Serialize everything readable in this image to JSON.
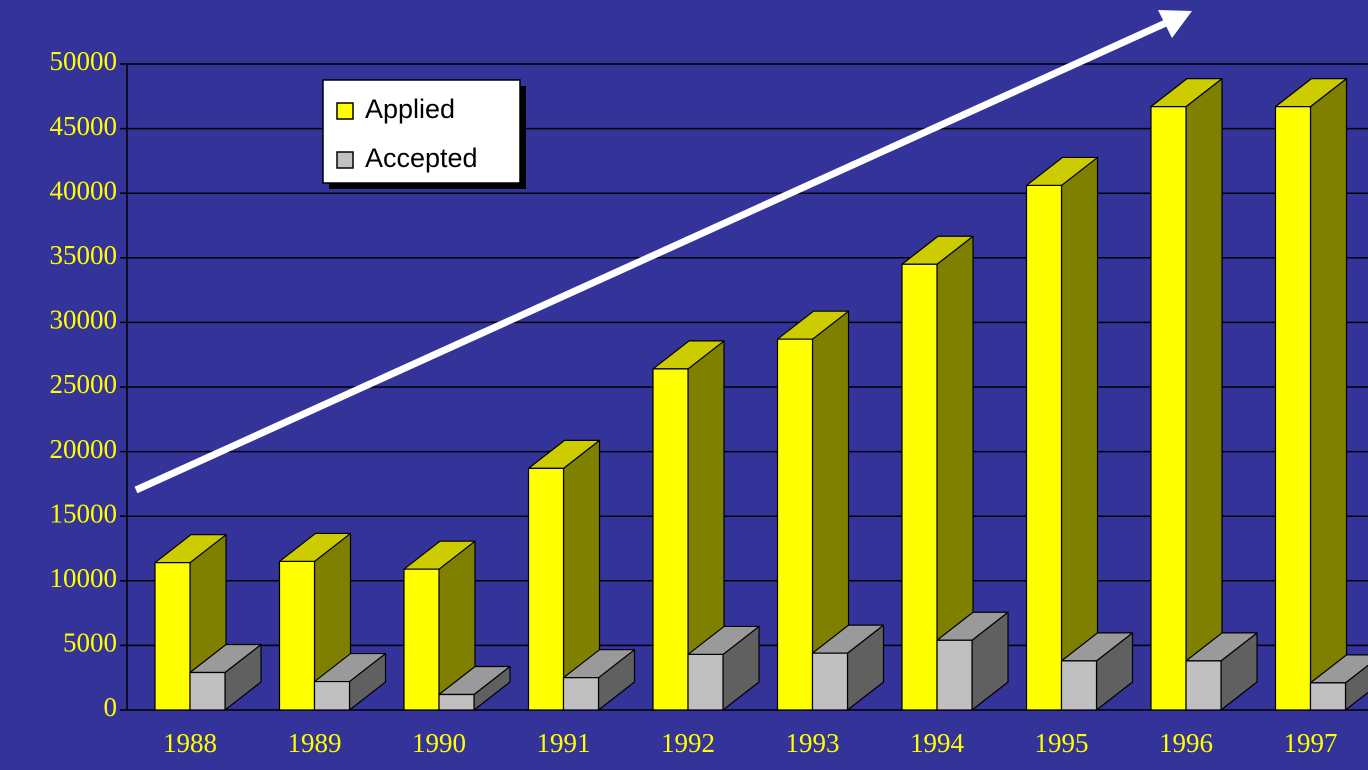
{
  "chart_data": {
    "type": "bar3d",
    "categories": [
      "1988",
      "1989",
      "1990",
      "1991",
      "1992",
      "1993",
      "1994",
      "1995",
      "1996",
      "1997"
    ],
    "series": [
      {
        "name": "Applied",
        "color": "#ffff00",
        "values": [
          11400,
          11500,
          10900,
          18700,
          26400,
          28700,
          34500,
          40600,
          46700,
          46700
        ]
      },
      {
        "name": "Accepted",
        "color": "#c0c0c0",
        "values": [
          2900,
          2200,
          1200,
          2500,
          4300,
          4400,
          5400,
          3800,
          3800,
          2100
        ]
      }
    ],
    "ylim": [
      0,
      50000
    ],
    "yticks": [
      0,
      5000,
      10000,
      15000,
      20000,
      25000,
      30000,
      35000,
      40000,
      45000,
      50000
    ],
    "grid": true,
    "legend": "upper left"
  }
}
